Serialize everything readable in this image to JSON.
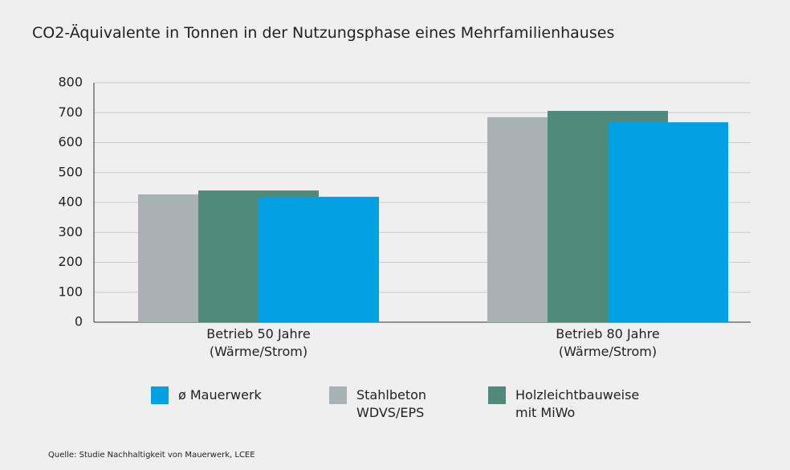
{
  "chart_data": {
    "type": "bar",
    "title": "CO2-Äquivalente in Tonnen in der Nutzungsphase eines Mehrfamilienhauses",
    "categories": [
      "Betrieb 50 Jahre (Wärme/Strom)",
      "Betrieb 80 Jahre (Wärme/Strom)"
    ],
    "series": [
      {
        "name": "ø Mauerwerk",
        "color": "#00a0e3",
        "values": [
          419,
          668
        ]
      },
      {
        "name": "Stahlbeton WDVS/EPS",
        "color": "#a8b1b4",
        "values": [
          427,
          685
        ]
      },
      {
        "name": "Holzleichtbauweise mit MiWo",
        "color": "#4f8a7b",
        "values": [
          440,
          706
        ]
      }
    ],
    "ylim": [
      0,
      800
    ],
    "yticks": [
      0,
      100,
      200,
      300,
      400,
      500,
      600,
      700,
      800
    ],
    "grid": true,
    "source": "Quelle: Studie Nachhaltigkeit von Mauerwerk, LCEE"
  }
}
